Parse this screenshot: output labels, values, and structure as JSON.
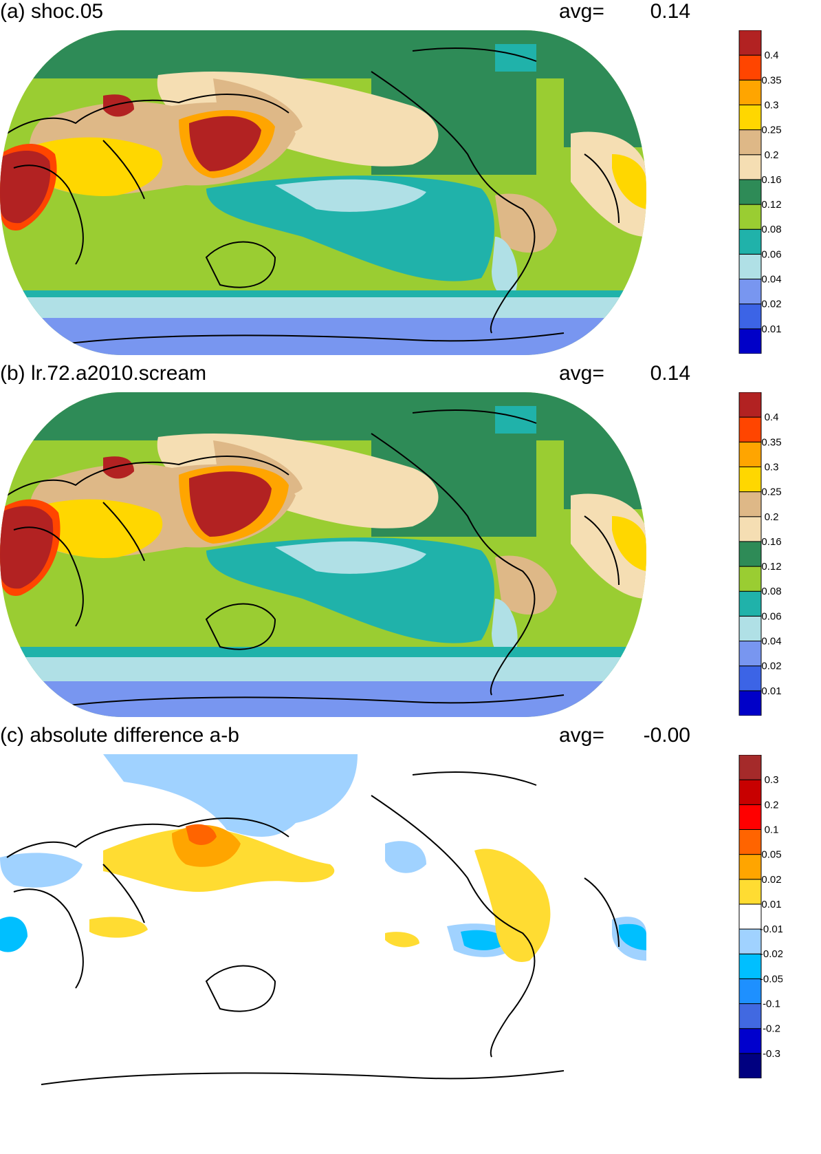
{
  "chart_data": [
    {
      "type": "heatmap",
      "panel_label": "(a) shoc.05",
      "avg_label": "avg=",
      "avg_value": "0.14",
      "colorbar": {
        "levels": [
          "0.01",
          "0.02",
          "0.04",
          "0.06",
          "0.08",
          "0.12",
          "0.16",
          "0.2",
          "0.25",
          "0.3",
          "0.35",
          "0.4"
        ],
        "colors": [
          "#0000c8",
          "#3c64e6",
          "#7896f0",
          "#b0e0e6",
          "#20b2aa",
          "#9acd32",
          "#2e8b57",
          "#f5deb3",
          "#deb887",
          "#ffd700",
          "#ffa500",
          "#ff4500",
          "#b22222"
        ]
      }
    },
    {
      "type": "heatmap",
      "panel_label": "(b) lr.72.a2010.scream",
      "avg_label": "avg=",
      "avg_value": "0.14",
      "colorbar": {
        "levels": [
          "0.01",
          "0.02",
          "0.04",
          "0.06",
          "0.08",
          "0.12",
          "0.16",
          "0.2",
          "0.25",
          "0.3",
          "0.35",
          "0.4"
        ],
        "colors": [
          "#0000c8",
          "#3c64e6",
          "#7896f0",
          "#b0e0e6",
          "#20b2aa",
          "#9acd32",
          "#2e8b57",
          "#f5deb3",
          "#deb887",
          "#ffd700",
          "#ffa500",
          "#ff4500",
          "#b22222"
        ]
      }
    },
    {
      "type": "heatmap",
      "panel_label": "(c) absolute difference a-b",
      "avg_label": "avg=",
      "avg_value": "-0.00",
      "colorbar": {
        "levels": [
          "-0.3",
          "-0.2",
          "-0.1",
          "-0.05",
          "-0.02",
          "-0.01",
          "0.01",
          "0.02",
          "0.05",
          "0.1",
          "0.2",
          "0.3"
        ],
        "colors": [
          "#000080",
          "#0000cd",
          "#4169e1",
          "#1e90ff",
          "#00bfff",
          "#a0d2ff",
          "#ffffff",
          "#ffdc32",
          "#ffa500",
          "#ff6400",
          "#ff0000",
          "#c80000",
          "#a52a2a"
        ]
      }
    }
  ]
}
